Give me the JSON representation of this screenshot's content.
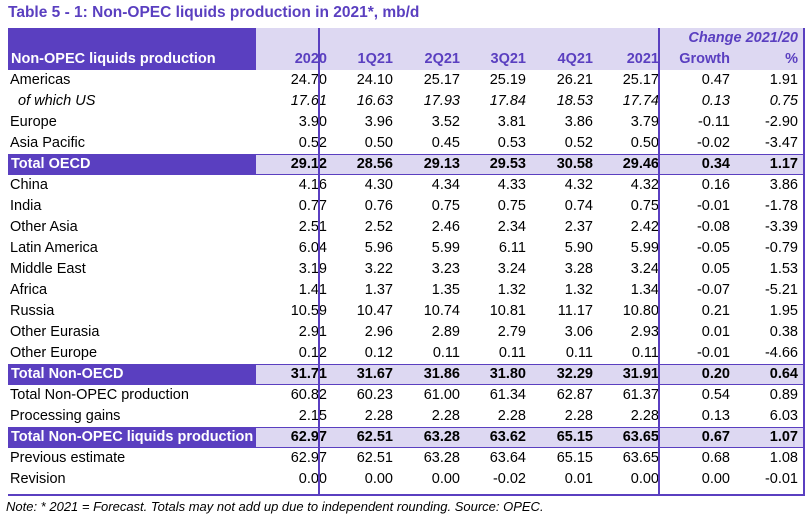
{
  "title": "Table 5 - 1: Non-OPEC liquids production in 2021*, mb/d",
  "header": {
    "change_group": "Change 2021/20",
    "row_label": "Non-OPEC liquids production",
    "columns": [
      "2020",
      "1Q21",
      "2Q21",
      "3Q21",
      "4Q21",
      "2021",
      "Growth",
      "%"
    ]
  },
  "rows": [
    {
      "label": "Americas",
      "values": [
        "24.70",
        "24.10",
        "25.17",
        "25.19",
        "26.21",
        "25.17",
        "0.47",
        "1.91"
      ]
    },
    {
      "label": "of which US",
      "values": [
        "17.61",
        "16.63",
        "17.93",
        "17.84",
        "18.53",
        "17.74",
        "0.13",
        "0.75"
      ]
    },
    {
      "label": "Europe",
      "values": [
        "3.90",
        "3.96",
        "3.52",
        "3.81",
        "3.86",
        "3.79",
        "-0.11",
        "-2.90"
      ]
    },
    {
      "label": "Asia Pacific",
      "values": [
        "0.52",
        "0.50",
        "0.45",
        "0.53",
        "0.52",
        "0.50",
        "-0.02",
        "-3.47"
      ]
    },
    {
      "label": "Total OECD",
      "values": [
        "29.12",
        "28.56",
        "29.13",
        "29.53",
        "30.58",
        "29.46",
        "0.34",
        "1.17"
      ]
    },
    {
      "label": "China",
      "values": [
        "4.16",
        "4.30",
        "4.34",
        "4.33",
        "4.32",
        "4.32",
        "0.16",
        "3.86"
      ]
    },
    {
      "label": "India",
      "values": [
        "0.77",
        "0.76",
        "0.75",
        "0.75",
        "0.74",
        "0.75",
        "-0.01",
        "-1.78"
      ]
    },
    {
      "label": "Other Asia",
      "values": [
        "2.51",
        "2.52",
        "2.46",
        "2.34",
        "2.37",
        "2.42",
        "-0.08",
        "-3.39"
      ]
    },
    {
      "label": "Latin America",
      "values": [
        "6.04",
        "5.96",
        "5.99",
        "6.11",
        "5.90",
        "5.99",
        "-0.05",
        "-0.79"
      ]
    },
    {
      "label": "Middle East",
      "values": [
        "3.19",
        "3.22",
        "3.23",
        "3.24",
        "3.28",
        "3.24",
        "0.05",
        "1.53"
      ]
    },
    {
      "label": "Africa",
      "values": [
        "1.41",
        "1.37",
        "1.35",
        "1.32",
        "1.32",
        "1.34",
        "-0.07",
        "-5.21"
      ]
    },
    {
      "label": "Russia",
      "values": [
        "10.59",
        "10.47",
        "10.74",
        "10.81",
        "11.17",
        "10.80",
        "0.21",
        "1.95"
      ]
    },
    {
      "label": "Other Eurasia",
      "values": [
        "2.91",
        "2.96",
        "2.89",
        "2.79",
        "3.06",
        "2.93",
        "0.01",
        "0.38"
      ]
    },
    {
      "label": "Other Europe",
      "values": [
        "0.12",
        "0.12",
        "0.11",
        "0.11",
        "0.11",
        "0.11",
        "-0.01",
        "-4.66"
      ]
    },
    {
      "label": "Total Non-OECD",
      "values": [
        "31.71",
        "31.67",
        "31.86",
        "31.80",
        "32.29",
        "31.91",
        "0.20",
        "0.64"
      ]
    },
    {
      "label": "Total Non-OPEC production",
      "values": [
        "60.82",
        "60.23",
        "61.00",
        "61.34",
        "62.87",
        "61.37",
        "0.54",
        "0.89"
      ]
    },
    {
      "label": "Processing gains",
      "values": [
        "2.15",
        "2.28",
        "2.28",
        "2.28",
        "2.28",
        "2.28",
        "0.13",
        "6.03"
      ]
    },
    {
      "label": "Total Non-OPEC liquids production",
      "values": [
        "62.97",
        "62.51",
        "63.28",
        "63.62",
        "65.15",
        "63.65",
        "0.67",
        "1.07"
      ]
    },
    {
      "label": "Previous estimate",
      "values": [
        "62.97",
        "62.51",
        "63.28",
        "63.64",
        "65.15",
        "63.65",
        "0.68",
        "1.08"
      ]
    },
    {
      "label": "Revision",
      "values": [
        "0.00",
        "0.00",
        "0.00",
        "-0.02",
        "0.01",
        "0.00",
        "0.00",
        "-0.01"
      ]
    }
  ],
  "note": "Note: * 2021 = Forecast. Totals may not add up due to independent rounding. Source: OPEC.",
  "colors": {
    "accent": "#5a3fc0",
    "highlight": "#ddd8f2"
  }
}
